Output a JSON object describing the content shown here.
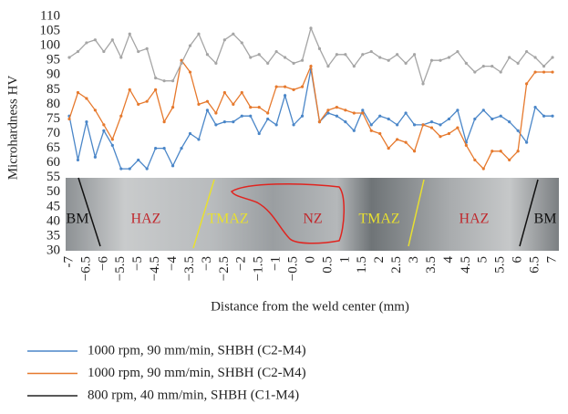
{
  "chart_data": {
    "type": "line",
    "y_label": "Microhardness HV",
    "x_label": "Distance from the weld center (mm)",
    "x": [
      -7,
      -6.75,
      -6.5,
      -6.25,
      -6,
      -5.75,
      -5.5,
      -5.25,
      -5,
      -4.75,
      -4.5,
      -4.25,
      -4,
      -3.75,
      -3.5,
      -3.25,
      -3,
      -2.75,
      -2.5,
      -2.25,
      -2,
      -1.75,
      -1.5,
      -1.25,
      -1,
      -0.75,
      -0.5,
      -0.25,
      0,
      0.25,
      0.5,
      0.75,
      1,
      1.25,
      1.5,
      1.75,
      2,
      2.25,
      2.5,
      2.75,
      3,
      3.25,
      3.5,
      3.75,
      4,
      4.25,
      4.5,
      4.75,
      5,
      5.25,
      5.5,
      5.75,
      6,
      6.25,
      6.5,
      6.75,
      7
    ],
    "series": [
      {
        "name": "1000 rpm, 90 mm/min, SHBH (C2-M4)",
        "color": "#4a86c8",
        "values": [
          76,
          61,
          74,
          62,
          71,
          66,
          58,
          58,
          61,
          58,
          65,
          65,
          59,
          65,
          70,
          68,
          78,
          73,
          74,
          74,
          76,
          76,
          70,
          75,
          73,
          83,
          73,
          76,
          92,
          74,
          77,
          76,
          74,
          71,
          78,
          73,
          76,
          75,
          73,
          77,
          73,
          73,
          74,
          73,
          75,
          78,
          67,
          75,
          78,
          75,
          76,
          74,
          71,
          67,
          79,
          76,
          76
        ]
      },
      {
        "name": "1000 rpm, 90 mm/min, SHBH (C2-M4)",
        "color": "#e6792d",
        "values": [
          75,
          84,
          82,
          78,
          73,
          68,
          76,
          85,
          80,
          81,
          85,
          74,
          79,
          95,
          91,
          80,
          81,
          77,
          84,
          80,
          84,
          79,
          79,
          77,
          86,
          86,
          85,
          86,
          93,
          74,
          78,
          79,
          78,
          77,
          77,
          71,
          70,
          65,
          68,
          67,
          64,
          73,
          72,
          69,
          70,
          72,
          66,
          61,
          58,
          64,
          64,
          61,
          64,
          87,
          91,
          91,
          91
        ]
      },
      {
        "name": "800 rpm, 40 mm/min, SHBH (C1-M4)",
        "color": "#a5a5a5",
        "legend_color": "#222222",
        "values": [
          96,
          98,
          101,
          102,
          98,
          102,
          96,
          104,
          98,
          99,
          89,
          88,
          88,
          94,
          100,
          104,
          97,
          94,
          102,
          104,
          101,
          96,
          97,
          94,
          98,
          96,
          94,
          95,
          106,
          99,
          93,
          97,
          97,
          93,
          97,
          98,
          96,
          95,
          97,
          94,
          97,
          87,
          95,
          95,
          96,
          98,
          94,
          91,
          93,
          93,
          91,
          96,
          94,
          98,
          96,
          93,
          96
        ]
      }
    ],
    "xlim": [
      -7,
      7
    ],
    "xticks": [
      -7,
      {
        "value": -6.5,
        "label": "−6.5"
      },
      {
        "value": -6,
        "label": "−6"
      },
      {
        "value": -5.5,
        "label": "−5.5"
      },
      {
        "value": -5,
        "label": "−5"
      },
      {
        "value": -4.5,
        "label": "−4.5"
      },
      {
        "value": -4,
        "label": "−4"
      },
      {
        "value": -3.5,
        "label": "−3.5"
      },
      {
        "value": -3,
        "label": "−3"
      },
      {
        "value": -2.5,
        "label": "−2.5"
      },
      {
        "value": -2,
        "label": "−2"
      },
      {
        "value": -1.5,
        "label": "−1.5"
      },
      {
        "value": -1,
        "label": "−1"
      },
      {
        "value": -0.5,
        "label": "−0.5"
      },
      0,
      0.5,
      1,
      1.5,
      2,
      2.5,
      3,
      3.5,
      4,
      4.5,
      5,
      5.5,
      6,
      6.5,
      7
    ],
    "ylim": [
      30,
      110
    ],
    "yticks": [
      30,
      35,
      40,
      45,
      50,
      55,
      60,
      65,
      70,
      75,
      80,
      85,
      90,
      95,
      100,
      105,
      110
    ],
    "annotations": [
      {
        "text": "BM",
        "color": "#111111"
      },
      {
        "text": "HAZ",
        "color": "#c0282d"
      },
      {
        "text": "TMAZ",
        "color": "#e8e030"
      },
      {
        "text": "NZ",
        "color": "#c0282d"
      },
      {
        "text": "TMAZ",
        "color": "#e8e030"
      },
      {
        "text": "HAZ",
        "color": "#c0282d"
      },
      {
        "text": "BM",
        "color": "#111111"
      }
    ]
  }
}
